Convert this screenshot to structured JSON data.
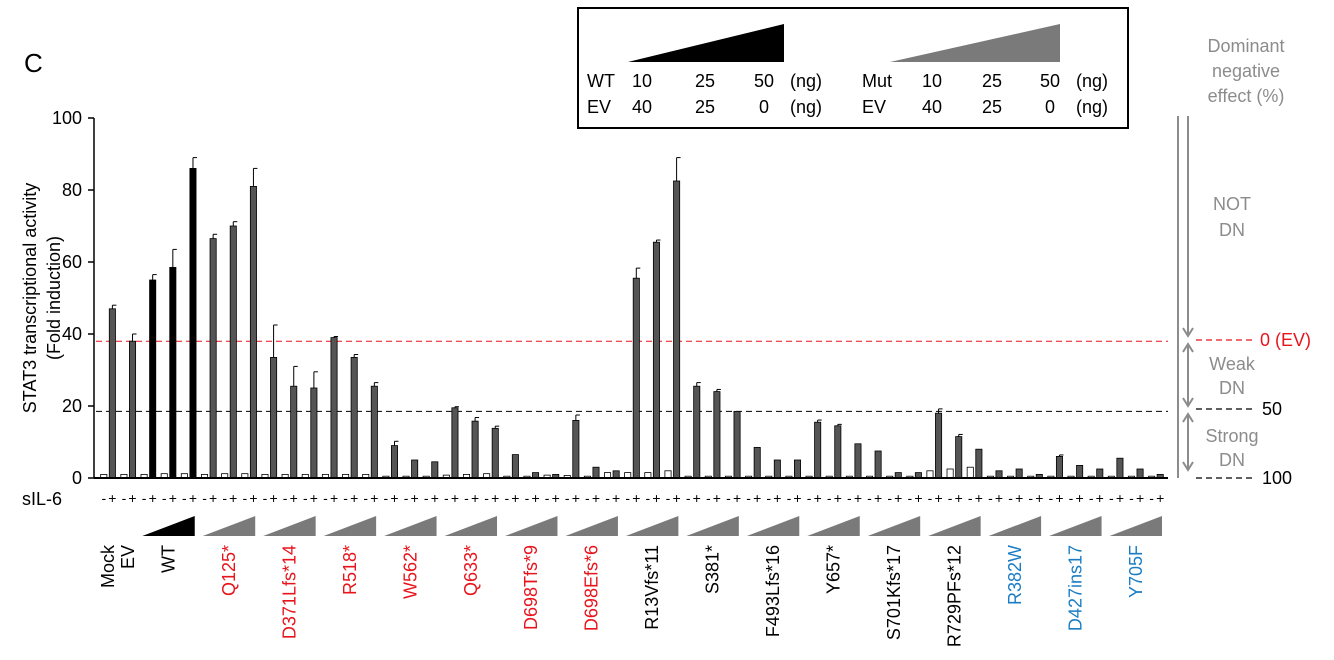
{
  "panel_label": "C",
  "colors": {
    "wt_bar": "#000000",
    "mut_bar": "#555555",
    "unstim_bar": "#ffffff",
    "red_label": "#e8141c",
    "blue_label": "#1a7dc4",
    "black_label": "#000000",
    "gray_text": "#8c8c8c",
    "ev_line": "#e8141c",
    "ramp_wt": "#000000",
    "ramp_mut": "#7a7a7a"
  },
  "legend": {
    "wt_label": "WT",
    "ev_label": "EV",
    "mut_label": "Mut",
    "unit": "(ng)",
    "wt_doses": [
      "10",
      "25",
      "50"
    ],
    "wt_ev_doses": [
      "40",
      "25",
      "0"
    ],
    "mut_doses": [
      "10",
      "25",
      "50"
    ],
    "mut_ev_doses": [
      "40",
      "25",
      "0"
    ]
  },
  "right_annotation": {
    "title_lines": [
      "Dominant",
      "negative",
      "effect (%)"
    ],
    "not_dn": [
      "NOT",
      "DN"
    ],
    "weak_dn": [
      "Weak",
      "DN"
    ],
    "strong_dn": [
      "Strong",
      "DN"
    ],
    "ev_label": "0 (EV)",
    "fifty_label": "50",
    "hundred_label": "100"
  },
  "sil6_label": "sIL-6",
  "chart_data": {
    "type": "bar",
    "ylabel_lines": [
      "STAT3 transcriptional activity",
      "(Fold induction)"
    ],
    "ylim": [
      0,
      100
    ],
    "yticks": [
      "0",
      "20",
      "40",
      "60",
      "80",
      "100"
    ],
    "reference_lines": [
      {
        "value": 38,
        "style": "red-dashed",
        "label": "0 (EV)"
      },
      {
        "value": 18.5,
        "style": "black-dashed",
        "label": "50"
      },
      {
        "value": 0,
        "style": "black-dashed",
        "label": "100"
      }
    ],
    "groups": [
      {
        "name": "Mock",
        "label_color": "black",
        "ramp": "none",
        "pairs": [
          [
            1,
            47
          ]
        ],
        "errors": [
          [
            0,
            1
          ]
        ]
      },
      {
        "name": "EV",
        "label_color": "black",
        "ramp": "none",
        "pairs": [
          [
            1,
            38
          ]
        ],
        "errors": [
          [
            0,
            2
          ]
        ]
      },
      {
        "name": "WT",
        "label_color": "black",
        "ramp": "black",
        "pairs": [
          [
            1,
            55
          ],
          [
            1.2,
            58.5
          ],
          [
            1.2,
            86
          ]
        ],
        "errors": [
          [
            0,
            1.5
          ],
          [
            0,
            5
          ],
          [
            0,
            3
          ]
        ]
      },
      {
        "name": "Q125*",
        "label_color": "red",
        "ramp": "gray",
        "pairs": [
          [
            1,
            66.5
          ],
          [
            1.2,
            70
          ],
          [
            1.2,
            81
          ]
        ],
        "errors": [
          [
            0,
            1.2
          ],
          [
            0,
            1.2
          ],
          [
            0,
            5
          ]
        ]
      },
      {
        "name": "D371Lfs*14",
        "label_color": "red",
        "ramp": "gray",
        "pairs": [
          [
            1,
            33.5
          ],
          [
            1,
            25.5
          ],
          [
            1,
            25
          ]
        ],
        "errors": [
          [
            0,
            9
          ],
          [
            0,
            5.5
          ],
          [
            0,
            4.5
          ]
        ]
      },
      {
        "name": "R518*",
        "label_color": "red",
        "ramp": "gray",
        "pairs": [
          [
            1,
            39
          ],
          [
            1,
            33.5
          ],
          [
            1,
            25.5
          ]
        ],
        "errors": [
          [
            0,
            0.3
          ],
          [
            0,
            0.8
          ],
          [
            0,
            1
          ]
        ]
      },
      {
        "name": "W562*",
        "label_color": "red",
        "ramp": "gray",
        "pairs": [
          [
            0.5,
            9
          ],
          [
            0.5,
            5
          ],
          [
            0.5,
            4.5
          ]
        ],
        "errors": [
          [
            0,
            1.2
          ],
          [
            0,
            0
          ],
          [
            0,
            0
          ]
        ]
      },
      {
        "name": "Q633*",
        "label_color": "red",
        "ramp": "gray",
        "pairs": [
          [
            0.8,
            19.5
          ],
          [
            1,
            15.8
          ],
          [
            1.2,
            13.8
          ]
        ],
        "errors": [
          [
            0,
            0.3
          ],
          [
            0,
            1
          ],
          [
            0,
            0.6
          ]
        ]
      },
      {
        "name": "D698Tfs*9",
        "label_color": "red",
        "ramp": "gray",
        "pairs": [
          [
            0.5,
            6.5
          ],
          [
            0.5,
            1.5
          ],
          [
            0.8,
            1
          ]
        ],
        "errors": [
          [
            0,
            0
          ],
          [
            0,
            0
          ],
          [
            0,
            0
          ]
        ]
      },
      {
        "name": "D698Efs*6",
        "label_color": "red",
        "ramp": "gray",
        "pairs": [
          [
            0.7,
            16
          ],
          [
            0.5,
            3
          ],
          [
            1.5,
            2
          ]
        ],
        "errors": [
          [
            0,
            1.5
          ],
          [
            0,
            0
          ],
          [
            0,
            0
          ]
        ]
      },
      {
        "name": "R13Vfs*11",
        "label_color": "black",
        "ramp": "gray",
        "pairs": [
          [
            1.5,
            55.5
          ],
          [
            1.5,
            65.5
          ],
          [
            2,
            82.5
          ]
        ],
        "errors": [
          [
            0,
            2.8
          ],
          [
            0,
            0.6
          ],
          [
            0,
            6.5
          ]
        ]
      },
      {
        "name": "S381*",
        "label_color": "black",
        "ramp": "gray",
        "pairs": [
          [
            0.5,
            25.5
          ],
          [
            0.5,
            24
          ],
          [
            0.5,
            18.5
          ]
        ],
        "errors": [
          [
            0,
            1
          ],
          [
            0,
            0.6
          ],
          [
            0,
            0
          ]
        ]
      },
      {
        "name": "F493Lfs*16",
        "label_color": "black",
        "ramp": "gray",
        "pairs": [
          [
            0.5,
            8.5
          ],
          [
            0.5,
            5
          ],
          [
            0.5,
            5
          ]
        ],
        "errors": [
          [
            0,
            0
          ],
          [
            0,
            0
          ],
          [
            0,
            0
          ]
        ]
      },
      {
        "name": "Y657*",
        "label_color": "black",
        "ramp": "gray",
        "pairs": [
          [
            0.5,
            15.5
          ],
          [
            0.5,
            14.5
          ],
          [
            0.5,
            9.5
          ]
        ],
        "errors": [
          [
            0,
            0.6
          ],
          [
            0,
            0.4
          ],
          [
            0,
            0
          ]
        ]
      },
      {
        "name": "S701Kfs*17",
        "label_color": "black",
        "ramp": "gray",
        "pairs": [
          [
            0.5,
            7.5
          ],
          [
            0.5,
            1.5
          ],
          [
            0.5,
            1.5
          ]
        ],
        "errors": [
          [
            0,
            0
          ],
          [
            0,
            0
          ],
          [
            0,
            0
          ]
        ]
      },
      {
        "name": "R729PFs*12",
        "label_color": "black",
        "ramp": "gray",
        "pairs": [
          [
            2,
            18
          ],
          [
            2.5,
            11.5
          ],
          [
            3,
            8
          ]
        ],
        "errors": [
          [
            0,
            1.2
          ],
          [
            0,
            0.6
          ],
          [
            0,
            0
          ]
        ]
      },
      {
        "name": "R382W",
        "label_color": "blue",
        "ramp": "gray",
        "pairs": [
          [
            0.5,
            2
          ],
          [
            0.5,
            2.5
          ],
          [
            0.5,
            1
          ]
        ],
        "errors": [
          [
            0,
            0
          ],
          [
            0,
            0
          ],
          [
            0,
            0
          ]
        ]
      },
      {
        "name": "D427ins17",
        "label_color": "blue",
        "ramp": "gray",
        "pairs": [
          [
            0.5,
            6
          ],
          [
            0.5,
            3.5
          ],
          [
            0.5,
            2.5
          ]
        ],
        "errors": [
          [
            0,
            0.4
          ],
          [
            0,
            0
          ],
          [
            0,
            0
          ]
        ]
      },
      {
        "name": "Y705F",
        "label_color": "blue",
        "ramp": "gray",
        "pairs": [
          [
            0.5,
            5.5
          ],
          [
            0.5,
            2.5
          ],
          [
            0.5,
            1
          ]
        ],
        "errors": [
          [
            0,
            0
          ],
          [
            0,
            0
          ],
          [
            0,
            0
          ]
        ]
      }
    ]
  }
}
